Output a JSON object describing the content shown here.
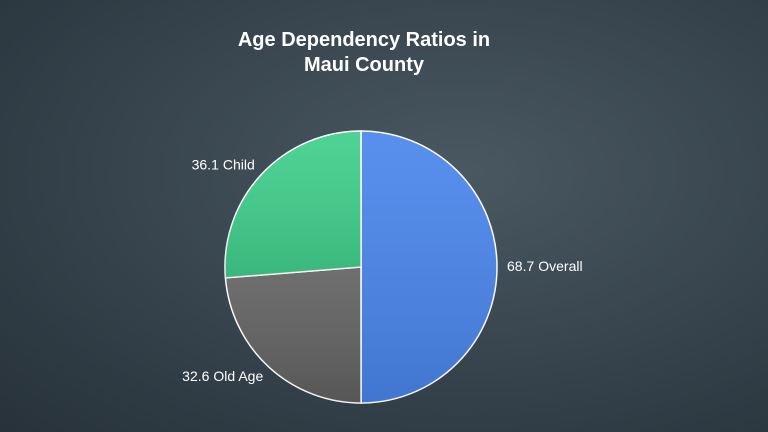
{
  "chart_data": {
    "type": "pie",
    "title": "Age Dependency Ratios in Maui County",
    "categories": [
      "Overall",
      "Old Age",
      "Child"
    ],
    "values": [
      68.7,
      32.6,
      36.1
    ],
    "colors": [
      "#4a86ec",
      "#626262",
      "#40cf8c"
    ]
  }
}
